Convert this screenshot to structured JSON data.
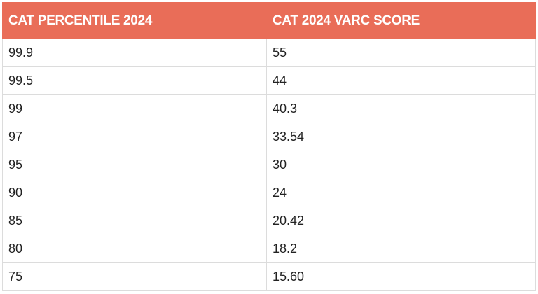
{
  "table": {
    "header": [
      "CAT PERCENTILE 2024",
      "CAT 2024 VARC SCORE"
    ],
    "rows": [
      [
        "99.9",
        "55"
      ],
      [
        "99.5",
        "44"
      ],
      [
        "99",
        "40.3"
      ],
      [
        "97",
        "33.54"
      ],
      [
        "95",
        "30"
      ],
      [
        "90",
        "24"
      ],
      [
        "85",
        "20.42"
      ],
      [
        "80",
        "18.2"
      ],
      [
        "75",
        "15.60"
      ]
    ]
  }
}
